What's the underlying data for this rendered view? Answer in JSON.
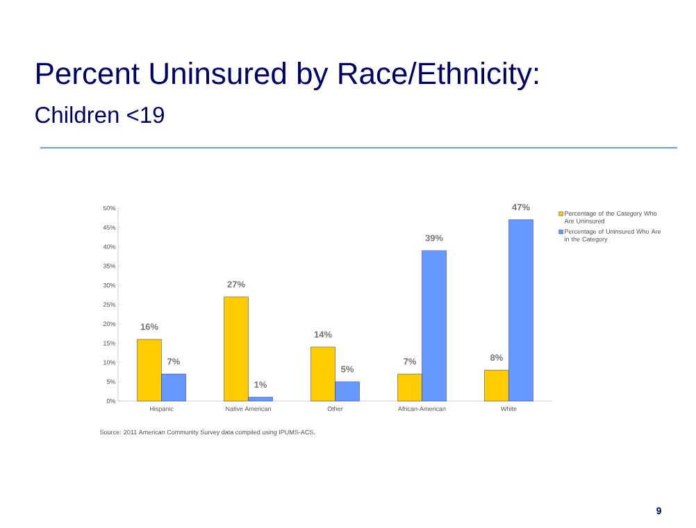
{
  "chart_data": {
    "type": "bar",
    "title": "Percent Uninsured by Race/Ethnicity:",
    "subtitle": "Children <19",
    "categories": [
      "Hispanic",
      "Native American",
      "Other",
      "African-American",
      "White"
    ],
    "series": [
      {
        "name": "Percentage of the Category Who Are Uninsured",
        "color": "#ffcc00",
        "values": [
          16,
          27,
          14,
          7,
          8
        ],
        "value_labels": [
          "16%",
          "27%",
          "14%",
          "7%",
          "8%"
        ]
      },
      {
        "name": "Percentage of Uninsured Who Are in the Category",
        "color": "#6699ff",
        "values": [
          7,
          1,
          5,
          39,
          47
        ],
        "value_labels": [
          "7%",
          "1%",
          "5%",
          "39%",
          "47%"
        ]
      }
    ],
    "ylim": [
      0,
      50
    ],
    "yticks": [
      {
        "value": 0,
        "label": "0%"
      },
      {
        "value": 5,
        "label": "5%"
      },
      {
        "value": 10,
        "label": "10%"
      },
      {
        "value": 15,
        "label": "15%"
      },
      {
        "value": 20,
        "label": "20%"
      },
      {
        "value": 25,
        "label": "25%"
      },
      {
        "value": 30,
        "label": "30%"
      },
      {
        "value": 35,
        "label": "35%"
      },
      {
        "value": 40,
        "label": "40%"
      },
      {
        "value": 45,
        "label": "45%"
      },
      {
        "value": 50,
        "label": "50%"
      }
    ],
    "legend": "right",
    "grid": false,
    "annotations": [
      "Source:  2011 American Community Survey data compiled using IPUMS-ACS.",
      "9"
    ]
  }
}
